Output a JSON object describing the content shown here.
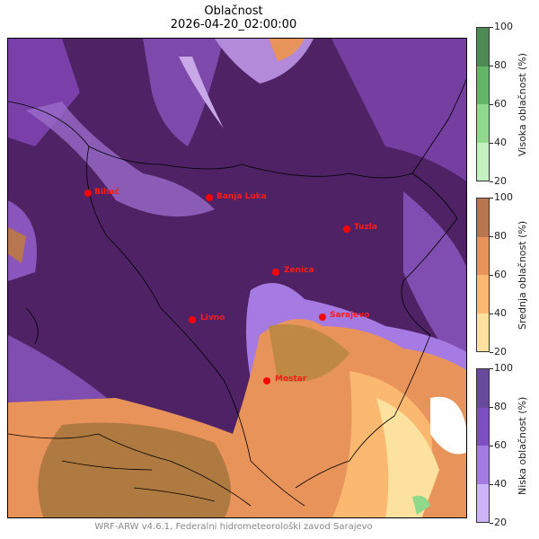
{
  "title": "Oblačnost",
  "subtitle": "2026-04-20_02:00:00",
  "footer": "WRF-ARW v4.6.1, Federalni hidrometeorološki zavod Sarajevo",
  "colorbars": [
    {
      "label": "Visoka oblačnost (%)",
      "ticks": [
        "100",
        "80",
        "60",
        "40",
        "20"
      ],
      "colors": [
        "#4e8b54",
        "#64b667",
        "#8fd88c",
        "#c4f1c2"
      ]
    },
    {
      "label": "Srednja oblačnost (%)",
      "ticks": [
        "100",
        "80",
        "60",
        "40",
        "20"
      ],
      "colors": [
        "#b87650",
        "#e8935a",
        "#fbb870",
        "#fde19e"
      ]
    },
    {
      "label": "Niska oblačnost (%)",
      "ticks": [
        "100",
        "80",
        "60",
        "40",
        "20"
      ],
      "colors": [
        "#674a9c",
        "#7e4fc3",
        "#a57ae2",
        "#cdb4f9"
      ]
    }
  ],
  "cities": [
    {
      "name": "Bihać"
    },
    {
      "name": "Banja Luka"
    },
    {
      "name": "Tuzla"
    },
    {
      "name": "Zenica"
    },
    {
      "name": "Livno"
    },
    {
      "name": "Sarajevo"
    },
    {
      "name": "Mostar"
    }
  ]
}
